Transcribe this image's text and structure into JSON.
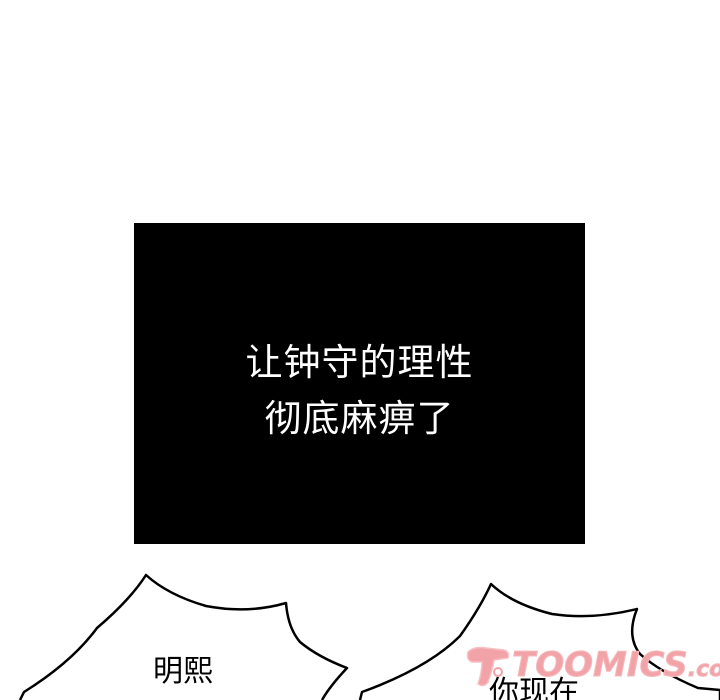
{
  "narration": {
    "line1": "让钟守的理性",
    "line2": "彻底麻痹了"
  },
  "bubbles": {
    "left_text": "明熙",
    "right_text": "你现在"
  },
  "watermark": {
    "brand": "TOOMICS",
    "suffix": ".com",
    "color": "#f2a3a8"
  },
  "colors": {
    "background": "#ffffff",
    "narration_box": "#000000",
    "narration_text": "#ffffff"
  }
}
